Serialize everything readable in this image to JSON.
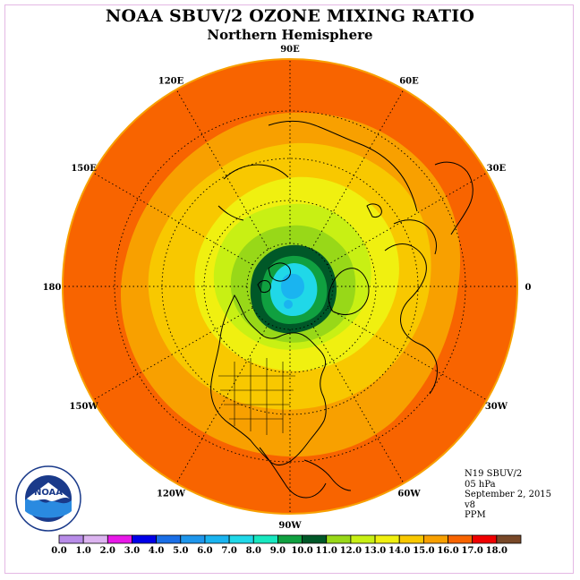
{
  "title": "NOAA SBUV/2 OZONE MIXING RATIO",
  "subtitle": "Northern Hemisphere",
  "longitude_labels": [
    {
      "id": "lon-90e",
      "text": "90E",
      "lon_deg": 90
    },
    {
      "id": "lon-60e",
      "text": "60E",
      "lon_deg": 60
    },
    {
      "id": "lon-30e",
      "text": "30E",
      "lon_deg": 30
    },
    {
      "id": "lon-0",
      "text": "0",
      "lon_deg": 0
    },
    {
      "id": "lon-30w",
      "text": "30W",
      "lon_deg": -30
    },
    {
      "id": "lon-60w",
      "text": "60W",
      "lon_deg": -60
    },
    {
      "id": "lon-90w",
      "text": "90W",
      "lon_deg": -90
    },
    {
      "id": "lon-120w",
      "text": "120W",
      "lon_deg": -120
    },
    {
      "id": "lon-150w",
      "text": "150W",
      "lon_deg": -150
    },
    {
      "id": "lon-180",
      "text": "180",
      "lon_deg": 180
    },
    {
      "id": "lon-150e",
      "text": "150E",
      "lon_deg": 150
    },
    {
      "id": "lon-120e",
      "text": "120E",
      "lon_deg": 120
    }
  ],
  "info": {
    "instrument": "N19 SBUV/2",
    "level": "05 hPa",
    "date": "September 2, 2015",
    "version": "v8",
    "units": "PPM"
  },
  "logo": {
    "text": "NOAA"
  },
  "colorbar": {
    "labels": [
      "0.0",
      "1.0",
      "2.0",
      "3.0",
      "4.0",
      "5.0",
      "6.0",
      "7.0",
      "8.0",
      "9.0",
      "10.0",
      "11.0",
      "12.0",
      "13.0",
      "14.0",
      "15.0",
      "16.0",
      "17.0",
      "18.0"
    ],
    "colors": [
      "#b88ce8",
      "#dcb4f0",
      "#e818e8",
      "#0000e8",
      "#1a6ee6",
      "#1e96ec",
      "#1ab4f0",
      "#20d8e8",
      "#18e8c0",
      "#10a040",
      "#005828",
      "#98d818",
      "#c8f014",
      "#f0f010",
      "#f8c800",
      "#f8a000",
      "#f86400",
      "#f00000",
      "#784828"
    ]
  },
  "map_fields": [
    {
      "level": "14-15",
      "color": "#f8a000"
    },
    {
      "level": "13-14",
      "color": "#f8c800"
    },
    {
      "level": "12-13",
      "color": "#f0f010"
    },
    {
      "level": "11-12",
      "color": "#c8f014"
    },
    {
      "level": "10-11",
      "color": "#98d818"
    },
    {
      "level": "9-10",
      "color": "#005828"
    },
    {
      "level": "8-9",
      "color": "#10a040"
    },
    {
      "level": "7-8",
      "color": "#20d8e8"
    },
    {
      "level": "6-7",
      "color": "#1ab4f0"
    }
  ],
  "outer_color": "#f86400",
  "rim_color": "#f8a000"
}
